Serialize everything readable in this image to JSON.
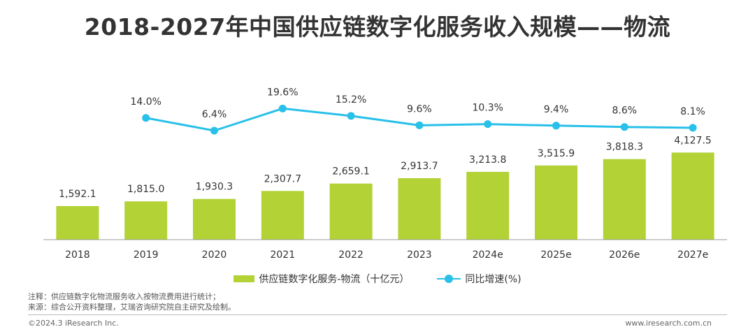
{
  "title": "2018-2027年中国供应链数字化服务收入规模——物流",
  "chart_data": {
    "type": "bar",
    "categories": [
      "2018",
      "2019",
      "2020",
      "2021",
      "2022",
      "2023",
      "2024e",
      "2025e",
      "2026e",
      "2027e"
    ],
    "series": [
      {
        "name": "供应链数字化服务-物流（十亿元）",
        "type": "bar",
        "color": "#b2d235",
        "values": [
          1592.1,
          1815.0,
          1930.3,
          2307.7,
          2659.1,
          2913.7,
          3213.8,
          3515.9,
          3818.3,
          4127.5
        ],
        "labels": [
          "1,592.1",
          "1,815.0",
          "1,930.3",
          "2,307.7",
          "2,659.1",
          "2,913.7",
          "3,213.8",
          "3,515.9",
          "3,818.3",
          "4,127.5"
        ]
      },
      {
        "name": "同比增速(%)",
        "type": "line",
        "color": "#29c0e9",
        "values": [
          null,
          14.0,
          6.4,
          19.6,
          15.2,
          9.6,
          10.3,
          9.4,
          8.6,
          8.1
        ],
        "labels": [
          "",
          "14.0%",
          "6.4%",
          "19.6%",
          "15.2%",
          "9.6%",
          "10.3%",
          "9.4%",
          "8.6%",
          "8.1%"
        ]
      }
    ],
    "grid": false,
    "legend": "bottom-center"
  },
  "notes": {
    "line1": "注释：供应链数字化物流服务收入按物流费用进行统计；",
    "line2": "来源：综合公开资料整理，艾瑞咨询研究院自主研究及绘制。"
  },
  "footer": {
    "left": "©2024.3 iResearch Inc.",
    "right": "www.iresearch.com.cn"
  }
}
